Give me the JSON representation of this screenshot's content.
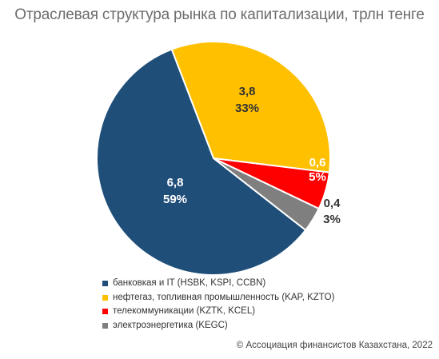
{
  "chart_data": {
    "type": "pie",
    "title": "Отраслевая структура рынка по капитализации, трлн тенге",
    "slices": [
      {
        "label": "банковкая и IT (HSBK, KSPI, CCBN)",
        "value": 6.8,
        "value_label": "6,8",
        "percent_label": "59%",
        "color": "#1f4e79",
        "label_color": "#ffffff"
      },
      {
        "label": "нефтегаз, топливная промышленность (KAP, KZTO)",
        "value": 3.8,
        "value_label": "3,8",
        "percent_label": "33%",
        "color": "#ffc000",
        "label_color": "#333333"
      },
      {
        "label": "телекоммуникации (KZTK, KCEL)",
        "value": 0.6,
        "value_label": "0,6",
        "percent_label": "5%",
        "color": "#ff0000",
        "label_color": "#ffffff"
      },
      {
        "label": "электроэнергетика (KEGC)",
        "value": 0.4,
        "value_label": "0,4",
        "percent_label": "3%",
        "color": "#7f7f7f",
        "label_color": "#333333"
      }
    ],
    "legend_position": "bottom"
  },
  "source": "© Ассоциация финансистов Казахстана, 2022"
}
